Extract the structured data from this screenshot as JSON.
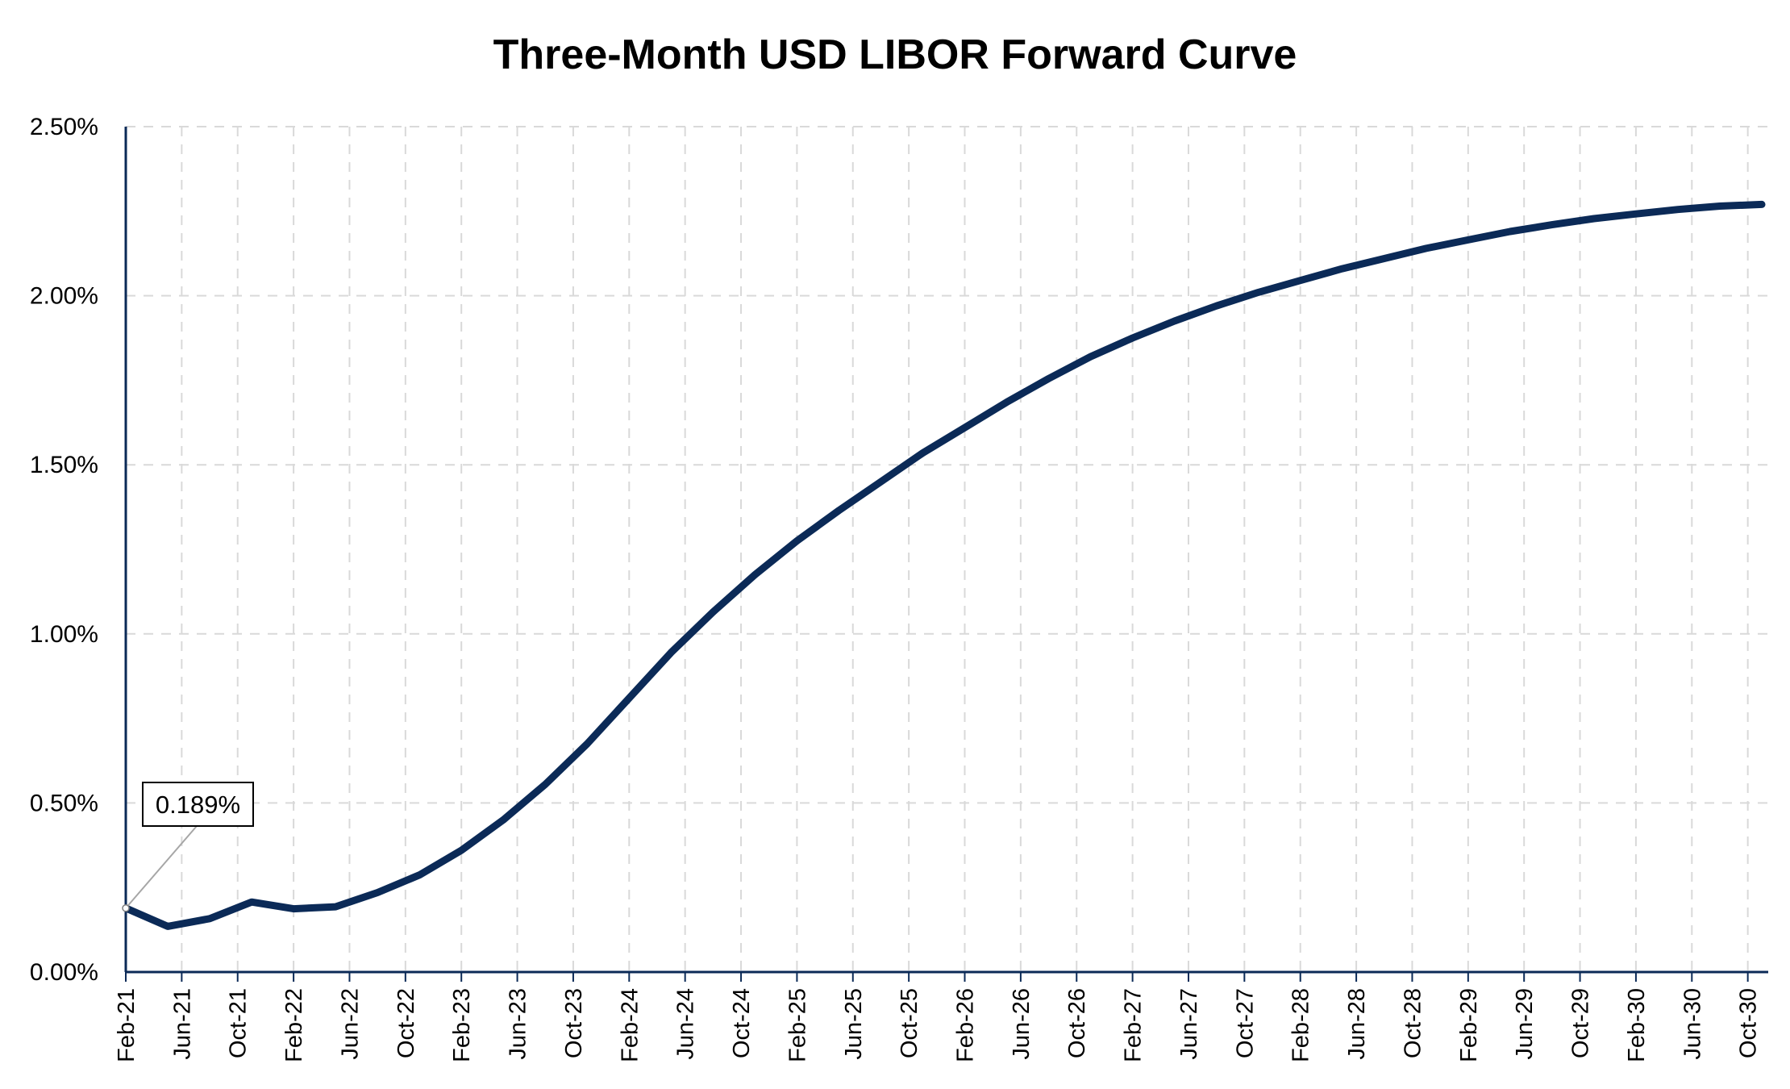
{
  "chart_data": {
    "type": "line",
    "title": "Three-Month USD LIBOR Forward Curve",
    "xlabel": "",
    "ylabel": "",
    "ylim": [
      0,
      2.5
    ],
    "yticks": [
      "0.00%",
      "0.50%",
      "1.00%",
      "1.50%",
      "2.00%",
      "2.50%"
    ],
    "ytick_values": [
      0,
      0.5,
      1.0,
      1.5,
      2.0,
      2.5
    ],
    "grid": true,
    "legend": "none",
    "xticks": [
      "Feb-21",
      "Jun-21",
      "Oct-21",
      "Feb-22",
      "Jun-22",
      "Oct-22",
      "Feb-23",
      "Jun-23",
      "Oct-23",
      "Feb-24",
      "Jun-24",
      "Oct-24",
      "Feb-25",
      "Jun-25",
      "Oct-25",
      "Feb-26",
      "Jun-26",
      "Oct-26",
      "Feb-27",
      "Jun-27",
      "Oct-27",
      "Feb-28",
      "Jun-28",
      "Oct-28",
      "Feb-29",
      "Jun-29",
      "Oct-29",
      "Feb-30",
      "Jun-30",
      "Oct-30"
    ],
    "line_color": "#0b2a57",
    "series": [
      {
        "x": [
          "Feb-21",
          "May-21",
          "Aug-21",
          "Nov-21",
          "Feb-22",
          "May-22",
          "Aug-22",
          "Nov-22",
          "Feb-23",
          "May-23",
          "Aug-23",
          "Nov-23",
          "Feb-24",
          "May-24",
          "Aug-24",
          "Nov-24",
          "Feb-25",
          "May-25",
          "Aug-25",
          "Nov-25",
          "Feb-26",
          "May-26",
          "Aug-26",
          "Nov-26",
          "Feb-27",
          "May-27",
          "Aug-27",
          "Nov-27",
          "Feb-28",
          "May-28",
          "Aug-28",
          "Nov-28",
          "Feb-29",
          "May-29",
          "Aug-29",
          "Nov-29",
          "Feb-30",
          "May-30",
          "Aug-30",
          "Nov-30"
        ],
        "values": [
          0.189,
          0.135,
          0.158,
          0.207,
          0.187,
          0.193,
          0.235,
          0.287,
          0.36,
          0.45,
          0.555,
          0.675,
          0.81,
          0.945,
          1.065,
          1.175,
          1.275,
          1.365,
          1.45,
          1.535,
          1.61,
          1.685,
          1.755,
          1.82,
          1.875,
          1.925,
          1.97,
          2.01,
          2.045,
          2.08,
          2.11,
          2.14,
          2.165,
          2.19,
          2.21,
          2.228,
          2.242,
          2.255,
          2.265,
          2.27
        ]
      }
    ],
    "annotations": [
      {
        "text": "0.189%",
        "x": "Feb-21",
        "y": 0.189
      }
    ]
  }
}
